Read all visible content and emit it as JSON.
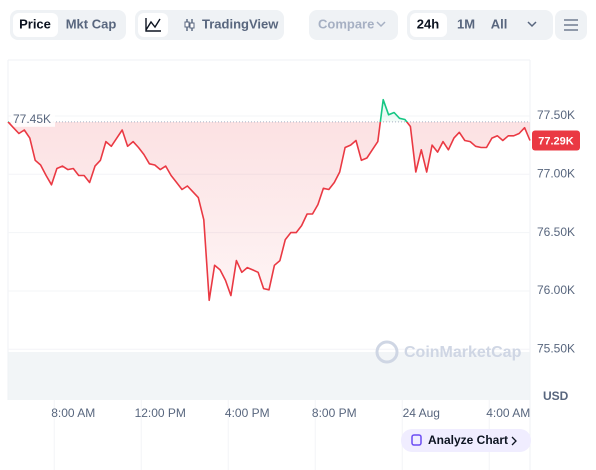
{
  "toolbar": {
    "price": "Price",
    "mkt_cap": "Mkt Cap",
    "tradingview": "TradingView",
    "compare": "Compare",
    "ranges": [
      "24h",
      "1M",
      "All"
    ]
  },
  "chart_data": {
    "type": "line",
    "watermark": "CoinMarketCap",
    "y_unit": "USD",
    "analyze": "Analyze Chart",
    "x": [
      5,
      5.25,
      5.5,
      5.75,
      6,
      6.25,
      6.5,
      6.75,
      7,
      7.25,
      7.5,
      7.75,
      8,
      8.25,
      8.5,
      8.75,
      9,
      9.25,
      9.5,
      9.75,
      10,
      10.25,
      10.5,
      10.75,
      11,
      11.25,
      11.5,
      11.75,
      12,
      12.25,
      12.5,
      12.75,
      13,
      13.25,
      13.5,
      13.75,
      14,
      14.25,
      14.5,
      14.75,
      15,
      15.25,
      15.5,
      15.75,
      16,
      16.25,
      16.5,
      16.75,
      17,
      17.25,
      17.5,
      17.75,
      18,
      18.25,
      18.5,
      18.75,
      19,
      19.25,
      19.5,
      19.75,
      20,
      20.25,
      20.5,
      20.75,
      21,
      21.25,
      21.5,
      21.75,
      22,
      22.25,
      22.5,
      22.75,
      23,
      23.25,
      23.5,
      23.75,
      24,
      24.25,
      24.5,
      24.75,
      25,
      25.25,
      25.5,
      25.75,
      26,
      26.25,
      26.5,
      26.75,
      27,
      27.25,
      27.5,
      27.75,
      28,
      28.25,
      28.5,
      28.75,
      29
    ],
    "series": [
      {
        "color": "#ea3943",
        "above_color": "#16c784",
        "values": [
          77450,
          77400,
          77350,
          77380,
          77310,
          77120,
          77080,
          76990,
          76910,
          77050,
          77070,
          77040,
          77050,
          76990,
          76990,
          76930,
          77070,
          77120,
          77280,
          77240,
          77310,
          77380,
          77240,
          77280,
          77230,
          77170,
          77090,
          77080,
          77040,
          77070,
          76990,
          76930,
          76870,
          76900,
          76850,
          76800,
          76610,
          75920,
          76220,
          76180,
          76090,
          75960,
          76260,
          76160,
          76200,
          76180,
          76160,
          76020,
          76010,
          76220,
          76260,
          76440,
          76500,
          76500,
          76560,
          76660,
          76660,
          76740,
          76880,
          76870,
          76930,
          77020,
          77230,
          77250,
          77290,
          77120,
          77140,
          77210,
          77280,
          77640,
          77510,
          77530,
          77480,
          77470,
          77410,
          77020,
          77210,
          77020,
          77250,
          77190,
          77280,
          77210,
          77310,
          77360,
          77290,
          77280,
          77240,
          77230,
          77230,
          77310,
          77330,
          77290,
          77330,
          77330,
          77350,
          77400,
          77290
        ]
      }
    ],
    "xlim": [
      5,
      29
    ],
    "xticks": [
      {
        "value": 8,
        "label": "8:00 AM"
      },
      {
        "value": 12,
        "label": "12:00 PM"
      },
      {
        "value": 16,
        "label": "4:00 PM"
      },
      {
        "value": 20,
        "label": "8:00 PM"
      },
      {
        "value": 24,
        "label": "24 Aug"
      },
      {
        "value": 28,
        "label": "4:00 AM"
      }
    ],
    "ylim": [
      75065,
      77980
    ],
    "yticks": [
      {
        "value": 77500,
        "label": "77.50K"
      },
      {
        "value": 77000,
        "label": "77.00K"
      },
      {
        "value": 76500,
        "label": "76.50K"
      },
      {
        "value": 76000,
        "label": "76.00K"
      },
      {
        "value": 75500,
        "label": "75.50K"
      }
    ],
    "reference_line": {
      "value": 77450,
      "label": "77.45K"
    },
    "current_price": {
      "value": 77290,
      "label": "77.29K",
      "color": "#ea3943"
    },
    "grid": true
  }
}
